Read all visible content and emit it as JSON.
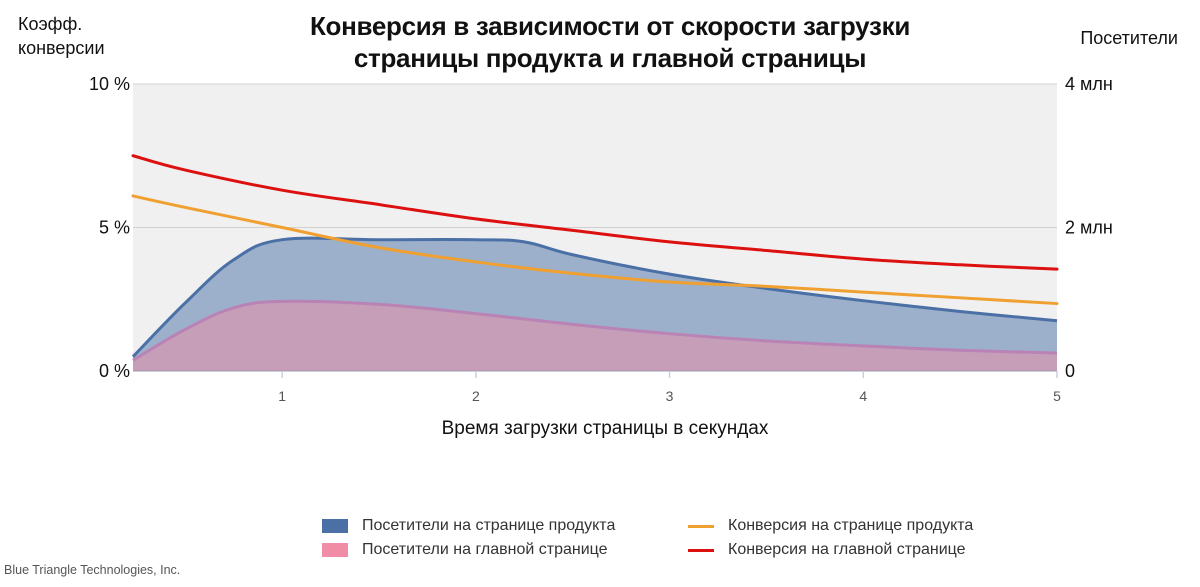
{
  "title_lines": [
    "Конверсия в зависимости от скорости загрузки",
    "страницы продукта и главной страницы"
  ],
  "y_left_title_lines": [
    "Коэфф.",
    "конверсии"
  ],
  "y_right_title": "Посетители",
  "x_title": "Время загрузки страницы в секундах",
  "credit": "Blue Triangle Technologies, Inc.",
  "colors": {
    "plot_bg": "#f0f0f0",
    "grid": "#d0d0d0",
    "product_visitors": "#4a70a6",
    "home_visitors": "#f08ca6",
    "product_conversion": "#f0a030",
    "home_conversion": "#dd1010"
  },
  "chart_data": {
    "type": "area",
    "xlabel": "Время загрузки страницы в секундах",
    "ylabel": "Коэфф. конверсии",
    "y2label": "Посетители",
    "xlim": [
      0.23,
      5
    ],
    "ylim": [
      0,
      10
    ],
    "y2lim": [
      0,
      4
    ],
    "x_ticks": [
      "1",
      "2",
      "3",
      "4",
      "5"
    ],
    "y_ticks": [
      "0 %",
      "5 %",
      "10 %"
    ],
    "y2_ticks": [
      "0",
      "2 млн",
      "4 млн"
    ],
    "grid": true,
    "legend_position": "bottom",
    "series": [
      {
        "name": "Посетители на странице продукта",
        "kind": "area",
        "axis": "right",
        "unit": "млн",
        "x": [
          0.23,
          0.5,
          0.75,
          1.0,
          1.5,
          2.0,
          2.25,
          2.5,
          3.0,
          3.5,
          4.0,
          4.5,
          5.0
        ],
        "values": [
          0.2,
          0.95,
          1.55,
          1.83,
          1.83,
          1.83,
          1.8,
          1.62,
          1.35,
          1.15,
          0.98,
          0.83,
          0.7
        ]
      },
      {
        "name": "Посетители на главной странице",
        "kind": "area",
        "axis": "right",
        "unit": "млн",
        "x": [
          0.23,
          0.5,
          0.75,
          1.0,
          1.5,
          2.0,
          2.5,
          3.0,
          3.5,
          4.0,
          4.5,
          5.0
        ],
        "values": [
          0.15,
          0.58,
          0.88,
          0.97,
          0.93,
          0.8,
          0.65,
          0.52,
          0.42,
          0.35,
          0.29,
          0.25
        ]
      },
      {
        "name": "Конверсия на странице продукта",
        "kind": "line",
        "axis": "left",
        "unit": "%",
        "x": [
          0.23,
          0.5,
          1.0,
          1.5,
          2.0,
          2.5,
          3.0,
          3.5,
          4.0,
          4.5,
          5.0
        ],
        "values": [
          6.1,
          5.7,
          5.0,
          4.3,
          3.8,
          3.4,
          3.1,
          2.95,
          2.75,
          2.55,
          2.35
        ]
      },
      {
        "name": "Конверсия на главной странице",
        "kind": "line",
        "axis": "left",
        "unit": "%",
        "x": [
          0.23,
          0.5,
          1.0,
          1.5,
          2.0,
          2.5,
          3.0,
          3.5,
          4.0,
          4.5,
          5.0
        ],
        "values": [
          7.5,
          7.0,
          6.3,
          5.8,
          5.3,
          4.9,
          4.5,
          4.2,
          3.9,
          3.7,
          3.55
        ]
      }
    ]
  }
}
